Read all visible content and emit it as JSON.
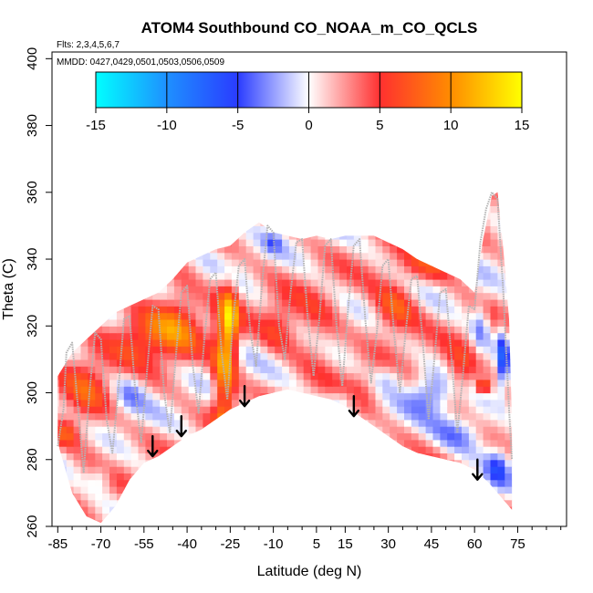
{
  "chart_data": {
    "type": "heatmap",
    "title": "ATOM4 Southbound CO_NOAA_m_CO_QCLS",
    "flights_label": "Flts: 2,3,4,5,6,7",
    "dates_label": "MMDD: 0427,0429,0501,0503,0506,0509",
    "xlabel": "Latitude (deg N)",
    "ylabel": "Theta (C)",
    "xlim": [
      -87,
      92
    ],
    "ylim": [
      260,
      402
    ],
    "xticks": [
      -85,
      -70,
      -55,
      -40,
      -25,
      -10,
      5,
      15,
      30,
      45,
      60,
      75
    ],
    "xtick_labels": [
      "-85",
      "-70",
      "-55",
      "-40",
      "-25",
      "-10",
      "5",
      "15",
      "30",
      "45",
      "60",
      "75"
    ],
    "x_minor_ticks": [
      -80,
      -75,
      -65,
      -60,
      -50,
      -45,
      -35,
      -30,
      -20,
      -15,
      -5,
      0,
      10,
      20,
      25,
      35,
      40,
      50,
      55,
      65,
      70,
      80,
      85,
      90
    ],
    "yticks": [
      260,
      280,
      300,
      320,
      340,
      360,
      380,
      400
    ],
    "ytick_labels": [
      "260",
      "280",
      "300",
      "320",
      "340",
      "360",
      "380",
      "400"
    ],
    "colorbar": {
      "min": -15,
      "max": 15,
      "ticks": [
        -15,
        -10,
        -5,
        0,
        5,
        10,
        15
      ],
      "tick_labels": [
        "-15",
        "-10",
        "-5",
        "0",
        "5",
        "10",
        "15"
      ],
      "colors": [
        "#00ffff",
        "#1e90ff",
        "#2a3cff",
        "#ffffff",
        "#ff3030",
        "#ff8c00",
        "#ffff00"
      ]
    },
    "domain_top": [
      [
        -85,
        305
      ],
      [
        -80,
        312
      ],
      [
        -75,
        316
      ],
      [
        -70,
        320
      ],
      [
        -65,
        324
      ],
      [
        -60,
        326
      ],
      [
        -55,
        328
      ],
      [
        -50,
        330
      ],
      [
        -45,
        334
      ],
      [
        -40,
        339
      ],
      [
        -35,
        341
      ],
      [
        -30,
        343
      ],
      [
        -25,
        344
      ],
      [
        -20,
        348
      ],
      [
        -15,
        351
      ],
      [
        -10,
        348
      ],
      [
        -5,
        347
      ],
      [
        0,
        346
      ],
      [
        5,
        347
      ],
      [
        10,
        346
      ],
      [
        15,
        347
      ],
      [
        20,
        347
      ],
      [
        25,
        347
      ],
      [
        30,
        345
      ],
      [
        35,
        343
      ],
      [
        40,
        340
      ],
      [
        45,
        338
      ],
      [
        50,
        336
      ],
      [
        55,
        334
      ],
      [
        60,
        330
      ],
      [
        63,
        346
      ],
      [
        66,
        359
      ],
      [
        68,
        360
      ],
      [
        70,
        343
      ],
      [
        72,
        322
      ],
      [
        73,
        292
      ]
    ],
    "domain_bottom": [
      [
        -85,
        285
      ],
      [
        -80,
        270
      ],
      [
        -75,
        263
      ],
      [
        -70,
        261
      ],
      [
        -65,
        266
      ],
      [
        -60,
        274
      ],
      [
        -55,
        279
      ],
      [
        -50,
        281
      ],
      [
        -45,
        284
      ],
      [
        -40,
        287
      ],
      [
        -35,
        289
      ],
      [
        -30,
        292
      ],
      [
        -25,
        295
      ],
      [
        -20,
        297
      ],
      [
        -15,
        299
      ],
      [
        -10,
        300
      ],
      [
        -5,
        301
      ],
      [
        0,
        300
      ],
      [
        5,
        299
      ],
      [
        10,
        298
      ],
      [
        15,
        296
      ],
      [
        20,
        293
      ],
      [
        25,
        290
      ],
      [
        30,
        287
      ],
      [
        35,
        284
      ],
      [
        40,
        282
      ],
      [
        45,
        281
      ],
      [
        50,
        280
      ],
      [
        55,
        279
      ],
      [
        60,
        277
      ],
      [
        65,
        273
      ],
      [
        70,
        268
      ],
      [
        73,
        265
      ]
    ],
    "anomalies": [
      {
        "lat": -27,
        "theta": 305,
        "value": 9,
        "sx": 4,
        "sy": 22
      },
      {
        "lat": -25,
        "theta": 322,
        "value": 7,
        "sx": 3,
        "sy": 10
      },
      {
        "lat": -55,
        "theta": 318,
        "value": 6,
        "sx": 12,
        "sy": 8
      },
      {
        "lat": -43,
        "theta": 322,
        "value": 5,
        "sx": 8,
        "sy": 12
      },
      {
        "lat": -75,
        "theta": 300,
        "value": 4,
        "sx": 8,
        "sy": 15
      },
      {
        "lat": -82,
        "theta": 288,
        "value": 5,
        "sx": 4,
        "sy": 4
      },
      {
        "lat": -8,
        "theta": 320,
        "value": 4,
        "sx": 6,
        "sy": 8
      },
      {
        "lat": 5,
        "theta": 318,
        "value": 3,
        "sx": 8,
        "sy": 12
      },
      {
        "lat": 32,
        "theta": 325,
        "value": 6,
        "sx": 8,
        "sy": 8
      },
      {
        "lat": 45,
        "theta": 338,
        "value": 4,
        "sx": 10,
        "sy": 5
      },
      {
        "lat": 55,
        "theta": 305,
        "value": 5,
        "sx": 6,
        "sy": 8
      },
      {
        "lat": 63,
        "theta": 302,
        "value": 12,
        "sx": 1.5,
        "sy": 2
      },
      {
        "lat": 20,
        "theta": 300,
        "value": 3,
        "sx": 6,
        "sy": 6
      },
      {
        "lat": 15,
        "theta": 298,
        "value": -4,
        "sx": 6,
        "sy": 4
      },
      {
        "lat": 45,
        "theta": 300,
        "value": -5,
        "sx": 8,
        "sy": 6
      },
      {
        "lat": 55,
        "theta": 288,
        "value": -5,
        "sx": 10,
        "sy": 6
      },
      {
        "lat": 70,
        "theta": 310,
        "value": -7,
        "sx": 2,
        "sy": 10
      },
      {
        "lat": 68,
        "theta": 278,
        "value": -5,
        "sx": 4,
        "sy": 6
      },
      {
        "lat": 30,
        "theta": 305,
        "value": -3,
        "sx": 5,
        "sy": 4
      },
      {
        "lat": -60,
        "theta": 300,
        "value": -3,
        "sx": 5,
        "sy": 6
      },
      {
        "lat": -70,
        "theta": 275,
        "value": -3,
        "sx": 4,
        "sy": 4
      },
      {
        "lat": -10,
        "theta": 345,
        "value": -3,
        "sx": 3,
        "sy": 3
      },
      {
        "lat": 62,
        "theta": 320,
        "value": -4,
        "sx": 3,
        "sy": 8
      }
    ],
    "arrows": [
      {
        "lat": -52,
        "theta_top": 287,
        "theta_tip": 281
      },
      {
        "lat": -42,
        "theta_top": 293,
        "theta_tip": 287
      },
      {
        "lat": -20,
        "theta_top": 302,
        "theta_tip": 296
      },
      {
        "lat": 18,
        "theta_top": 299,
        "theta_tip": 293
      },
      {
        "lat": 61,
        "theta_top": 280,
        "theta_tip": 274
      }
    ],
    "flight_tracks": [
      [
        [
          -85,
          284
        ],
        [
          -83,
          295
        ],
        [
          -82,
          312
        ],
        [
          -80,
          315
        ],
        [
          -78,
          296
        ],
        [
          -76,
          276
        ],
        [
          -74,
          300
        ],
        [
          -72,
          318
        ],
        [
          -70,
          316
        ],
        [
          -68,
          292
        ],
        [
          -66,
          282
        ],
        [
          -64,
          300
        ],
        [
          -62,
          322
        ],
        [
          -60,
          323
        ],
        [
          -58,
          300
        ],
        [
          -56,
          285
        ],
        [
          -54,
          306
        ],
        [
          -52,
          326
        ],
        [
          -50,
          325
        ],
        [
          -48,
          300
        ],
        [
          -46,
          288
        ],
        [
          -44,
          310
        ],
        [
          -42,
          330
        ],
        [
          -40,
          332
        ],
        [
          -38,
          308
        ],
        [
          -36,
          294
        ],
        [
          -34,
          316
        ],
        [
          -32,
          334
        ],
        [
          -30,
          336
        ],
        [
          -28,
          312
        ],
        [
          -26,
          298
        ],
        [
          -24,
          322
        ],
        [
          -22,
          338
        ],
        [
          -20,
          340
        ],
        [
          -18,
          318
        ],
        [
          -16,
          308
        ],
        [
          -14,
          332
        ],
        [
          -12,
          350
        ],
        [
          -10,
          348
        ],
        [
          -8,
          320
        ],
        [
          -6,
          310
        ],
        [
          -4,
          330
        ],
        [
          -2,
          345
        ],
        [
          0,
          346
        ],
        [
          2,
          322
        ],
        [
          4,
          305
        ],
        [
          6,
          322
        ],
        [
          8,
          344
        ],
        [
          10,
          346
        ],
        [
          12,
          320
        ],
        [
          14,
          302
        ],
        [
          16,
          325
        ],
        [
          18,
          344
        ],
        [
          20,
          346
        ],
        [
          22,
          322
        ],
        [
          24,
          303
        ],
        [
          26,
          318
        ],
        [
          28,
          338
        ],
        [
          30,
          340
        ],
        [
          32,
          318
        ],
        [
          34,
          300
        ],
        [
          36,
          318
        ],
        [
          38,
          334
        ],
        [
          40,
          335
        ],
        [
          42,
          315
        ],
        [
          44,
          292
        ],
        [
          46,
          310
        ],
        [
          48,
          330
        ],
        [
          50,
          331
        ],
        [
          52,
          310
        ],
        [
          54,
          288
        ],
        [
          56,
          306
        ],
        [
          58,
          326
        ],
        [
          60,
          325
        ],
        [
          62,
          345
        ],
        [
          64,
          355
        ],
        [
          66,
          360
        ],
        [
          68,
          358
        ],
        [
          70,
          330
        ],
        [
          72,
          295
        ],
        [
          73,
          280
        ]
      ]
    ]
  }
}
